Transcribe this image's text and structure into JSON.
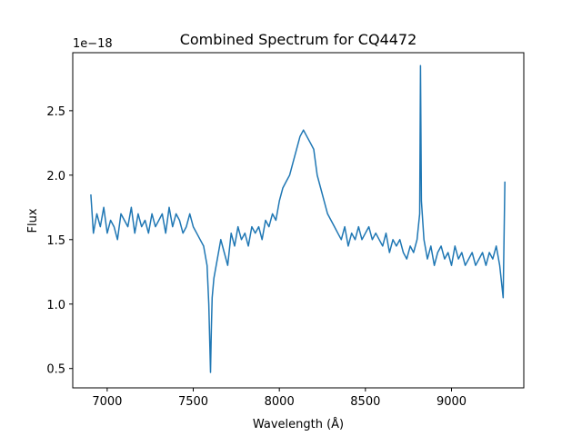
{
  "chart_data": {
    "type": "line",
    "title": "Combined Spectrum for CQ4472",
    "xlabel": "Wavelength (Å)",
    "ylabel": "Flux",
    "y_offset_label": "1e−18",
    "xlim": [
      6800,
      9420
    ],
    "ylim": [
      0.35,
      2.95
    ],
    "xticks": [
      7000,
      7500,
      8000,
      8500,
      9000
    ],
    "yticks": [
      0.5,
      1.0,
      1.5,
      2.0,
      2.5
    ],
    "grid": false,
    "line_color": "#1f77b4",
    "series": [
      {
        "x": [
          6905,
          6920,
          6940,
          6960,
          6980,
          7000,
          7020,
          7040,
          7060,
          7080,
          7100,
          7120,
          7140,
          7160,
          7180,
          7200,
          7220,
          7240,
          7260,
          7280,
          7300,
          7320,
          7340,
          7360,
          7380,
          7400,
          7420,
          7440,
          7460,
          7480,
          7500,
          7520,
          7540,
          7560,
          7580,
          7590,
          7600,
          7605,
          7610,
          7620,
          7640,
          7660,
          7680,
          7700,
          7720,
          7740,
          7760,
          7780,
          7800,
          7820,
          7840,
          7860,
          7880,
          7900,
          7920,
          7940,
          7960,
          7980,
          8000,
          8020,
          8040,
          8060,
          8080,
          8100,
          8120,
          8140,
          8160,
          8180,
          8200,
          8220,
          8240,
          8260,
          8280,
          8300,
          8320,
          8340,
          8360,
          8380,
          8400,
          8420,
          8440,
          8460,
          8480,
          8500,
          8520,
          8540,
          8560,
          8580,
          8600,
          8620,
          8640,
          8660,
          8680,
          8700,
          8720,
          8740,
          8760,
          8780,
          8800,
          8815,
          8820,
          8825,
          8840,
          8860,
          8880,
          8900,
          8920,
          8940,
          8960,
          8980,
          9000,
          9020,
          9040,
          9060,
          9080,
          9100,
          9120,
          9140,
          9160,
          9180,
          9200,
          9220,
          9240,
          9260,
          9280,
          9300,
          9310
        ],
        "y": [
          1.85,
          1.55,
          1.7,
          1.6,
          1.75,
          1.55,
          1.65,
          1.6,
          1.5,
          1.7,
          1.65,
          1.6,
          1.75,
          1.55,
          1.7,
          1.6,
          1.65,
          1.55,
          1.7,
          1.6,
          1.65,
          1.7,
          1.55,
          1.75,
          1.6,
          1.7,
          1.65,
          1.55,
          1.6,
          1.7,
          1.6,
          1.55,
          1.5,
          1.45,
          1.3,
          1.0,
          0.47,
          0.8,
          1.05,
          1.2,
          1.35,
          1.5,
          1.4,
          1.3,
          1.55,
          1.45,
          1.6,
          1.5,
          1.55,
          1.45,
          1.6,
          1.55,
          1.6,
          1.5,
          1.65,
          1.6,
          1.7,
          1.65,
          1.8,
          1.9,
          1.95,
          2.0,
          2.1,
          2.2,
          2.3,
          2.35,
          2.3,
          2.25,
          2.2,
          2.0,
          1.9,
          1.8,
          1.7,
          1.65,
          1.6,
          1.55,
          1.5,
          1.6,
          1.45,
          1.55,
          1.5,
          1.6,
          1.5,
          1.55,
          1.6,
          1.5,
          1.55,
          1.5,
          1.45,
          1.55,
          1.4,
          1.5,
          1.45,
          1.5,
          1.4,
          1.35,
          1.45,
          1.4,
          1.5,
          1.7,
          2.85,
          1.8,
          1.5,
          1.35,
          1.45,
          1.3,
          1.4,
          1.45,
          1.35,
          1.4,
          1.3,
          1.45,
          1.35,
          1.4,
          1.3,
          1.35,
          1.4,
          1.3,
          1.35,
          1.4,
          1.3,
          1.4,
          1.35,
          1.45,
          1.3,
          1.05,
          1.95
        ]
      }
    ]
  }
}
